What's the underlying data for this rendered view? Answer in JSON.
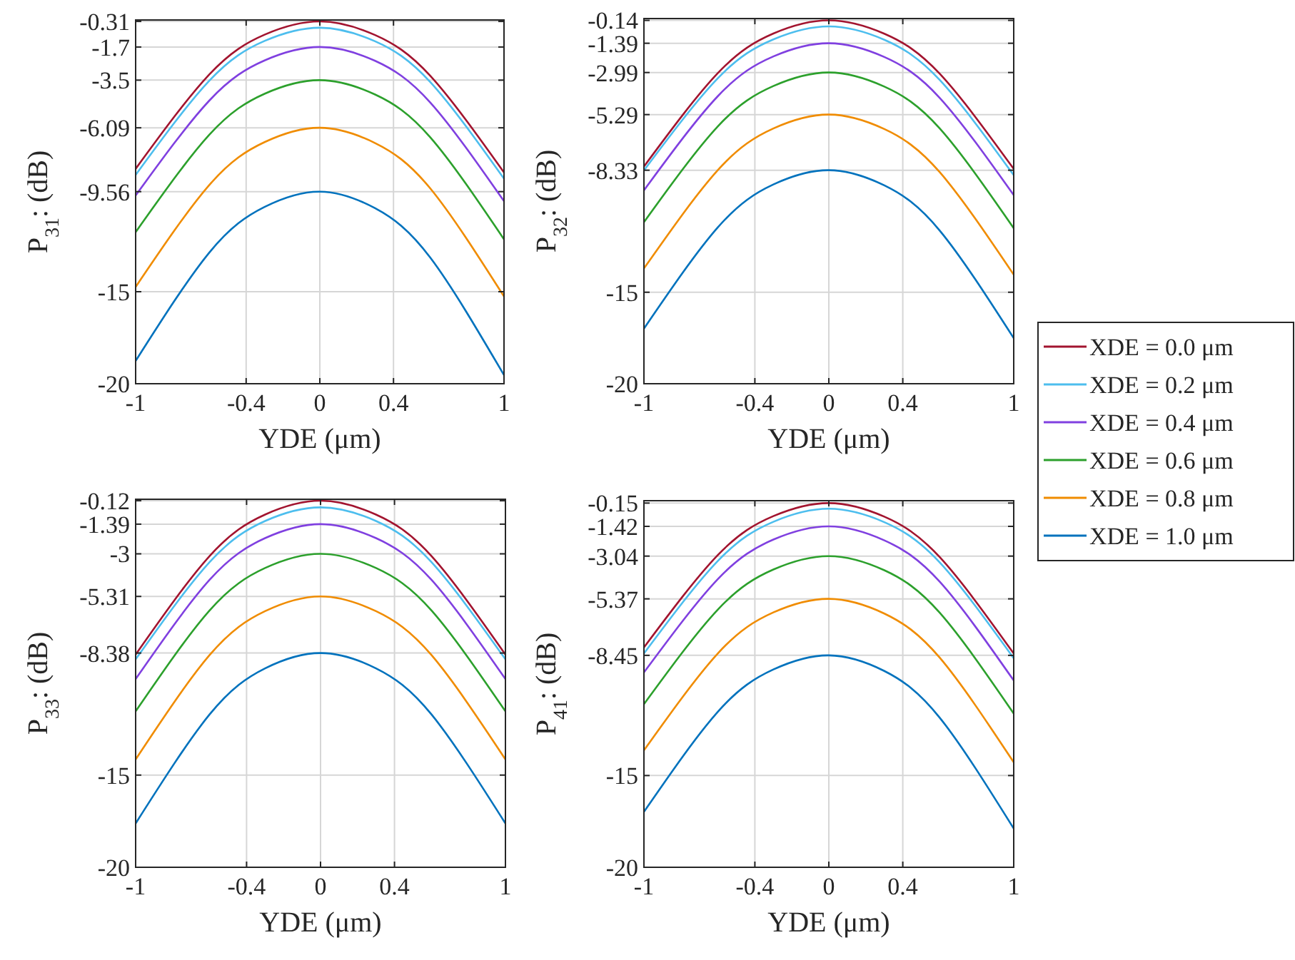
{
  "chart_data": [
    {
      "type": "line",
      "xlabel": "YDE (μm)",
      "ylabel": "P$_{31}$: (dB)",
      "x": [
        -1,
        -0.6,
        -0.3,
        0,
        0.3,
        0.6,
        1
      ],
      "xlim": [
        -1,
        1
      ],
      "xticks": [
        -1,
        -0.4,
        0,
        0.4,
        1
      ],
      "ylim": [
        -20,
        -0.23
      ],
      "yticks": [
        -20,
        -15,
        -9.56,
        -6.09,
        -3.5,
        -1.7,
        -0.31
      ],
      "grid": true,
      "series": [
        {
          "color": "#a2142f",
          "values": [
            -8.32,
            -3.19,
            -1.03,
            -0.31,
            -1.05,
            -3.27,
            -8.52
          ]
        },
        {
          "color": "#4dbeee",
          "values": [
            -8.65,
            -3.53,
            -1.37,
            -0.65,
            -1.39,
            -3.61,
            -8.86
          ]
        },
        {
          "color": "#8040e0",
          "values": [
            -9.77,
            -4.61,
            -2.43,
            -1.7,
            -2.45,
            -4.72,
            -10.08
          ]
        },
        {
          "color": "#2ca02c",
          "values": [
            -11.76,
            -6.47,
            -4.24,
            -3.5,
            -4.28,
            -6.61,
            -12.15
          ]
        },
        {
          "color": "#f08c00",
          "values": [
            -14.74,
            -9.2,
            -6.87,
            -6.09,
            -6.92,
            -9.39,
            -15.26
          ]
        },
        {
          "color": "#0072bd",
          "values": [
            -18.76,
            -12.87,
            -10.39,
            -9.56,
            -10.46,
            -13.15,
            -19.53
          ]
        }
      ]
    },
    {
      "type": "line",
      "xlabel": "YDE (μm)",
      "ylabel": "P$_{32}$: (dB)",
      "x": [
        -1,
        -0.6,
        -0.3,
        0,
        0.3,
        0.6,
        1
      ],
      "xlim": [
        -1,
        1
      ],
      "xticks": [
        -1,
        -0.4,
        0,
        0.4,
        1
      ],
      "ylim": [
        -20,
        -0.04
      ],
      "yticks": [
        -20,
        -15,
        -8.33,
        -5.29,
        -2.99,
        -1.39,
        -0.14
      ],
      "grid": true,
      "legend": "right",
      "series": [
        {
          "name": "XDE = 0.0 μm",
          "color": "#a2142f",
          "values": [
            -8.13,
            -3.02,
            -0.86,
            -0.14,
            -0.87,
            -3.06,
            -8.26
          ]
        },
        {
          "name": "XDE = 0.2 μm",
          "color": "#4dbeee",
          "values": [
            -8.34,
            -3.3,
            -1.18,
            -0.47,
            -1.2,
            -3.4,
            -8.6
          ]
        },
        {
          "name": "XDE = 0.4 μm",
          "color": "#8040e0",
          "values": [
            -9.43,
            -4.28,
            -2.11,
            -1.39,
            -2.14,
            -4.38,
            -9.69
          ]
        },
        {
          "name": "XDE = 0.6 μm",
          "color": "#2ca02c",
          "values": [
            -11.17,
            -5.93,
            -3.73,
            -2.99,
            -3.76,
            -6.05,
            -11.5
          ]
        },
        {
          "name": "XDE = 0.8 μm",
          "color": "#f08c00",
          "values": [
            -13.7,
            -8.32,
            -6.05,
            -5.29,
            -6.08,
            -8.44,
            -14.04
          ]
        },
        {
          "name": "XDE = 1.0 μm",
          "color": "#0072bd",
          "values": [
            -16.99,
            -11.45,
            -9.11,
            -8.33,
            -9.16,
            -11.63,
            -17.51
          ]
        }
      ]
    },
    {
      "type": "line",
      "xlabel": "YDE (μm)",
      "ylabel": "P$_{33}$: (dB)",
      "x": [
        -1,
        -0.6,
        -0.3,
        0,
        0.3,
        0.6,
        1
      ],
      "xlim": [
        -1,
        1
      ],
      "xticks": [
        -1,
        -0.4,
        0,
        0.4,
        1
      ],
      "ylim": [
        -20,
        -0.04
      ],
      "yticks": [
        -20,
        -15,
        -8.38,
        -5.31,
        -3,
        -1.39,
        -0.12
      ],
      "grid": true,
      "series": [
        {
          "color": "#a2142f",
          "values": [
            -8.46,
            -3.12,
            -0.87,
            -0.12,
            -0.87,
            -3.12,
            -8.46
          ]
        },
        {
          "color": "#4dbeee",
          "values": [
            -8.72,
            -3.45,
            -1.22,
            -0.48,
            -1.22,
            -3.45,
            -8.72
          ]
        },
        {
          "color": "#8040e0",
          "values": [
            -9.79,
            -4.41,
            -2.15,
            -1.39,
            -2.15,
            -4.41,
            -9.79
          ]
        },
        {
          "color": "#2ca02c",
          "values": [
            -11.54,
            -6.07,
            -3.77,
            -3,
            -3.77,
            -6.07,
            -11.54
          ]
        },
        {
          "color": "#f08c00",
          "values": [
            -14.15,
            -8.49,
            -6.11,
            -5.31,
            -6.11,
            -8.49,
            -14.15
          ]
        },
        {
          "color": "#0072bd",
          "values": [
            -17.62,
            -11.71,
            -9.21,
            -8.38,
            -9.21,
            -11.71,
            -17.62
          ]
        }
      ]
    },
    {
      "type": "line",
      "xlabel": "YDE (μm)",
      "ylabel": "P$_{41}$: (dB)",
      "x": [
        -1,
        -0.6,
        -0.3,
        0,
        0.3,
        0.6,
        1
      ],
      "xlim": [
        -1,
        1
      ],
      "xticks": [
        -1,
        -0.4,
        0,
        0.4,
        1
      ],
      "ylim": [
        -20,
        -0.02
      ],
      "yticks": [
        -20,
        -15,
        -8.45,
        -5.37,
        -3.04,
        -1.42,
        -0.15
      ],
      "grid": true,
      "series": [
        {
          "color": "#a2142f",
          "values": [
            -8.02,
            -2.98,
            -0.86,
            -0.15,
            -0.89,
            -3.1,
            -8.35
          ]
        },
        {
          "color": "#4dbeee",
          "values": [
            -8.35,
            -3.3,
            -1.17,
            -0.46,
            -1.19,
            -3.39,
            -8.61
          ]
        },
        {
          "color": "#8040e0",
          "values": [
            -9.38,
            -4.29,
            -2.14,
            -1.42,
            -2.18,
            -4.44,
            -9.82
          ]
        },
        {
          "color": "#2ca02c",
          "values": [
            -11.11,
            -5.95,
            -3.77,
            -3.04,
            -3.81,
            -6.13,
            -11.62
          ]
        },
        {
          "color": "#f08c00",
          "values": [
            -13.63,
            -8.34,
            -6.11,
            -5.37,
            -6.17,
            -8.58,
            -14.28
          ]
        },
        {
          "color": "#0072bd",
          "values": [
            -16.98,
            -11.52,
            -9.22,
            -8.45,
            -9.3,
            -11.85,
            -17.89
          ]
        }
      ]
    }
  ]
}
